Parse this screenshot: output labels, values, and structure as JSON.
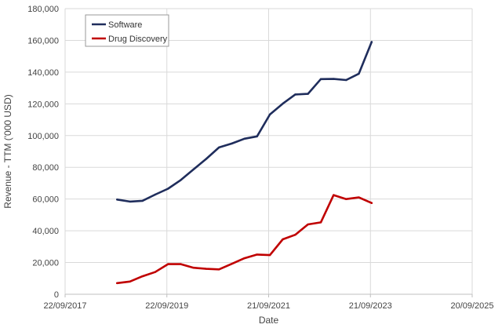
{
  "chart_data": {
    "type": "line",
    "xlabel": "Date",
    "ylabel": "Revenue - TTM ('000 USD)",
    "xlim": [
      "2017-09-22",
      "2025-09-20"
    ],
    "ylim": [
      0,
      180000
    ],
    "x_ticks": [
      {
        "date": "2017-09-22",
        "label": "22/09/2017"
      },
      {
        "date": "2019-09-22",
        "label": "22/09/2019"
      },
      {
        "date": "2021-09-21",
        "label": "21/09/2021"
      },
      {
        "date": "2023-09-21",
        "label": "21/09/2023"
      },
      {
        "date": "2025-09-20",
        "label": "20/09/2025"
      }
    ],
    "y_ticks": [
      {
        "value": 0,
        "label": "0"
      },
      {
        "value": 20000,
        "label": "20,000"
      },
      {
        "value": 40000,
        "label": "40,000"
      },
      {
        "value": 60000,
        "label": "60,000"
      },
      {
        "value": 80000,
        "label": "80,000"
      },
      {
        "value": 100000,
        "label": "100,000"
      },
      {
        "value": 120000,
        "label": "120,000"
      },
      {
        "value": 140000,
        "label": "140,000"
      },
      {
        "value": 160000,
        "label": "160,000"
      },
      {
        "value": 180000,
        "label": "180,000"
      }
    ],
    "grid": true,
    "legend_position": "top-left",
    "series": [
      {
        "name": "Software",
        "color": "#1f2d5c",
        "points": [
          {
            "x": "2018-09-30",
            "y": 59700
          },
          {
            "x": "2018-12-31",
            "y": 58400
          },
          {
            "x": "2019-03-31",
            "y": 58900
          },
          {
            "x": "2019-06-30",
            "y": 62800
          },
          {
            "x": "2019-09-30",
            "y": 66500
          },
          {
            "x": "2019-12-31",
            "y": 72000
          },
          {
            "x": "2020-03-31",
            "y": 78700
          },
          {
            "x": "2020-06-30",
            "y": 85300
          },
          {
            "x": "2020-09-30",
            "y": 92500
          },
          {
            "x": "2020-12-31",
            "y": 95000
          },
          {
            "x": "2021-03-31",
            "y": 98000
          },
          {
            "x": "2021-06-30",
            "y": 99500
          },
          {
            "x": "2021-09-30",
            "y": 113300
          },
          {
            "x": "2021-12-31",
            "y": 120100
          },
          {
            "x": "2022-03-31",
            "y": 125900
          },
          {
            "x": "2022-06-30",
            "y": 126300
          },
          {
            "x": "2022-09-30",
            "y": 135600
          },
          {
            "x": "2022-12-31",
            "y": 135700
          },
          {
            "x": "2023-03-31",
            "y": 135000
          },
          {
            "x": "2023-06-30",
            "y": 139000
          },
          {
            "x": "2023-09-30",
            "y": 159000
          }
        ]
      },
      {
        "name": "Drug Discovery",
        "color": "#c00000",
        "points": [
          {
            "x": "2018-09-30",
            "y": 7000
          },
          {
            "x": "2018-12-31",
            "y": 8000
          },
          {
            "x": "2019-03-31",
            "y": 11300
          },
          {
            "x": "2019-06-30",
            "y": 14000
          },
          {
            "x": "2019-09-30",
            "y": 19000
          },
          {
            "x": "2019-12-31",
            "y": 19000
          },
          {
            "x": "2020-03-31",
            "y": 16700
          },
          {
            "x": "2020-06-30",
            "y": 16000
          },
          {
            "x": "2020-09-30",
            "y": 15700
          },
          {
            "x": "2020-12-31",
            "y": 19200
          },
          {
            "x": "2021-03-31",
            "y": 22700
          },
          {
            "x": "2021-06-30",
            "y": 25000
          },
          {
            "x": "2021-09-30",
            "y": 24700
          },
          {
            "x": "2021-12-31",
            "y": 34600
          },
          {
            "x": "2022-03-31",
            "y": 37500
          },
          {
            "x": "2022-06-30",
            "y": 44000
          },
          {
            "x": "2022-09-30",
            "y": 45300
          },
          {
            "x": "2022-12-31",
            "y": 62500
          },
          {
            "x": "2023-03-31",
            "y": 60000
          },
          {
            "x": "2023-06-30",
            "y": 61000
          },
          {
            "x": "2023-09-30",
            "y": 57500
          }
        ]
      }
    ]
  }
}
